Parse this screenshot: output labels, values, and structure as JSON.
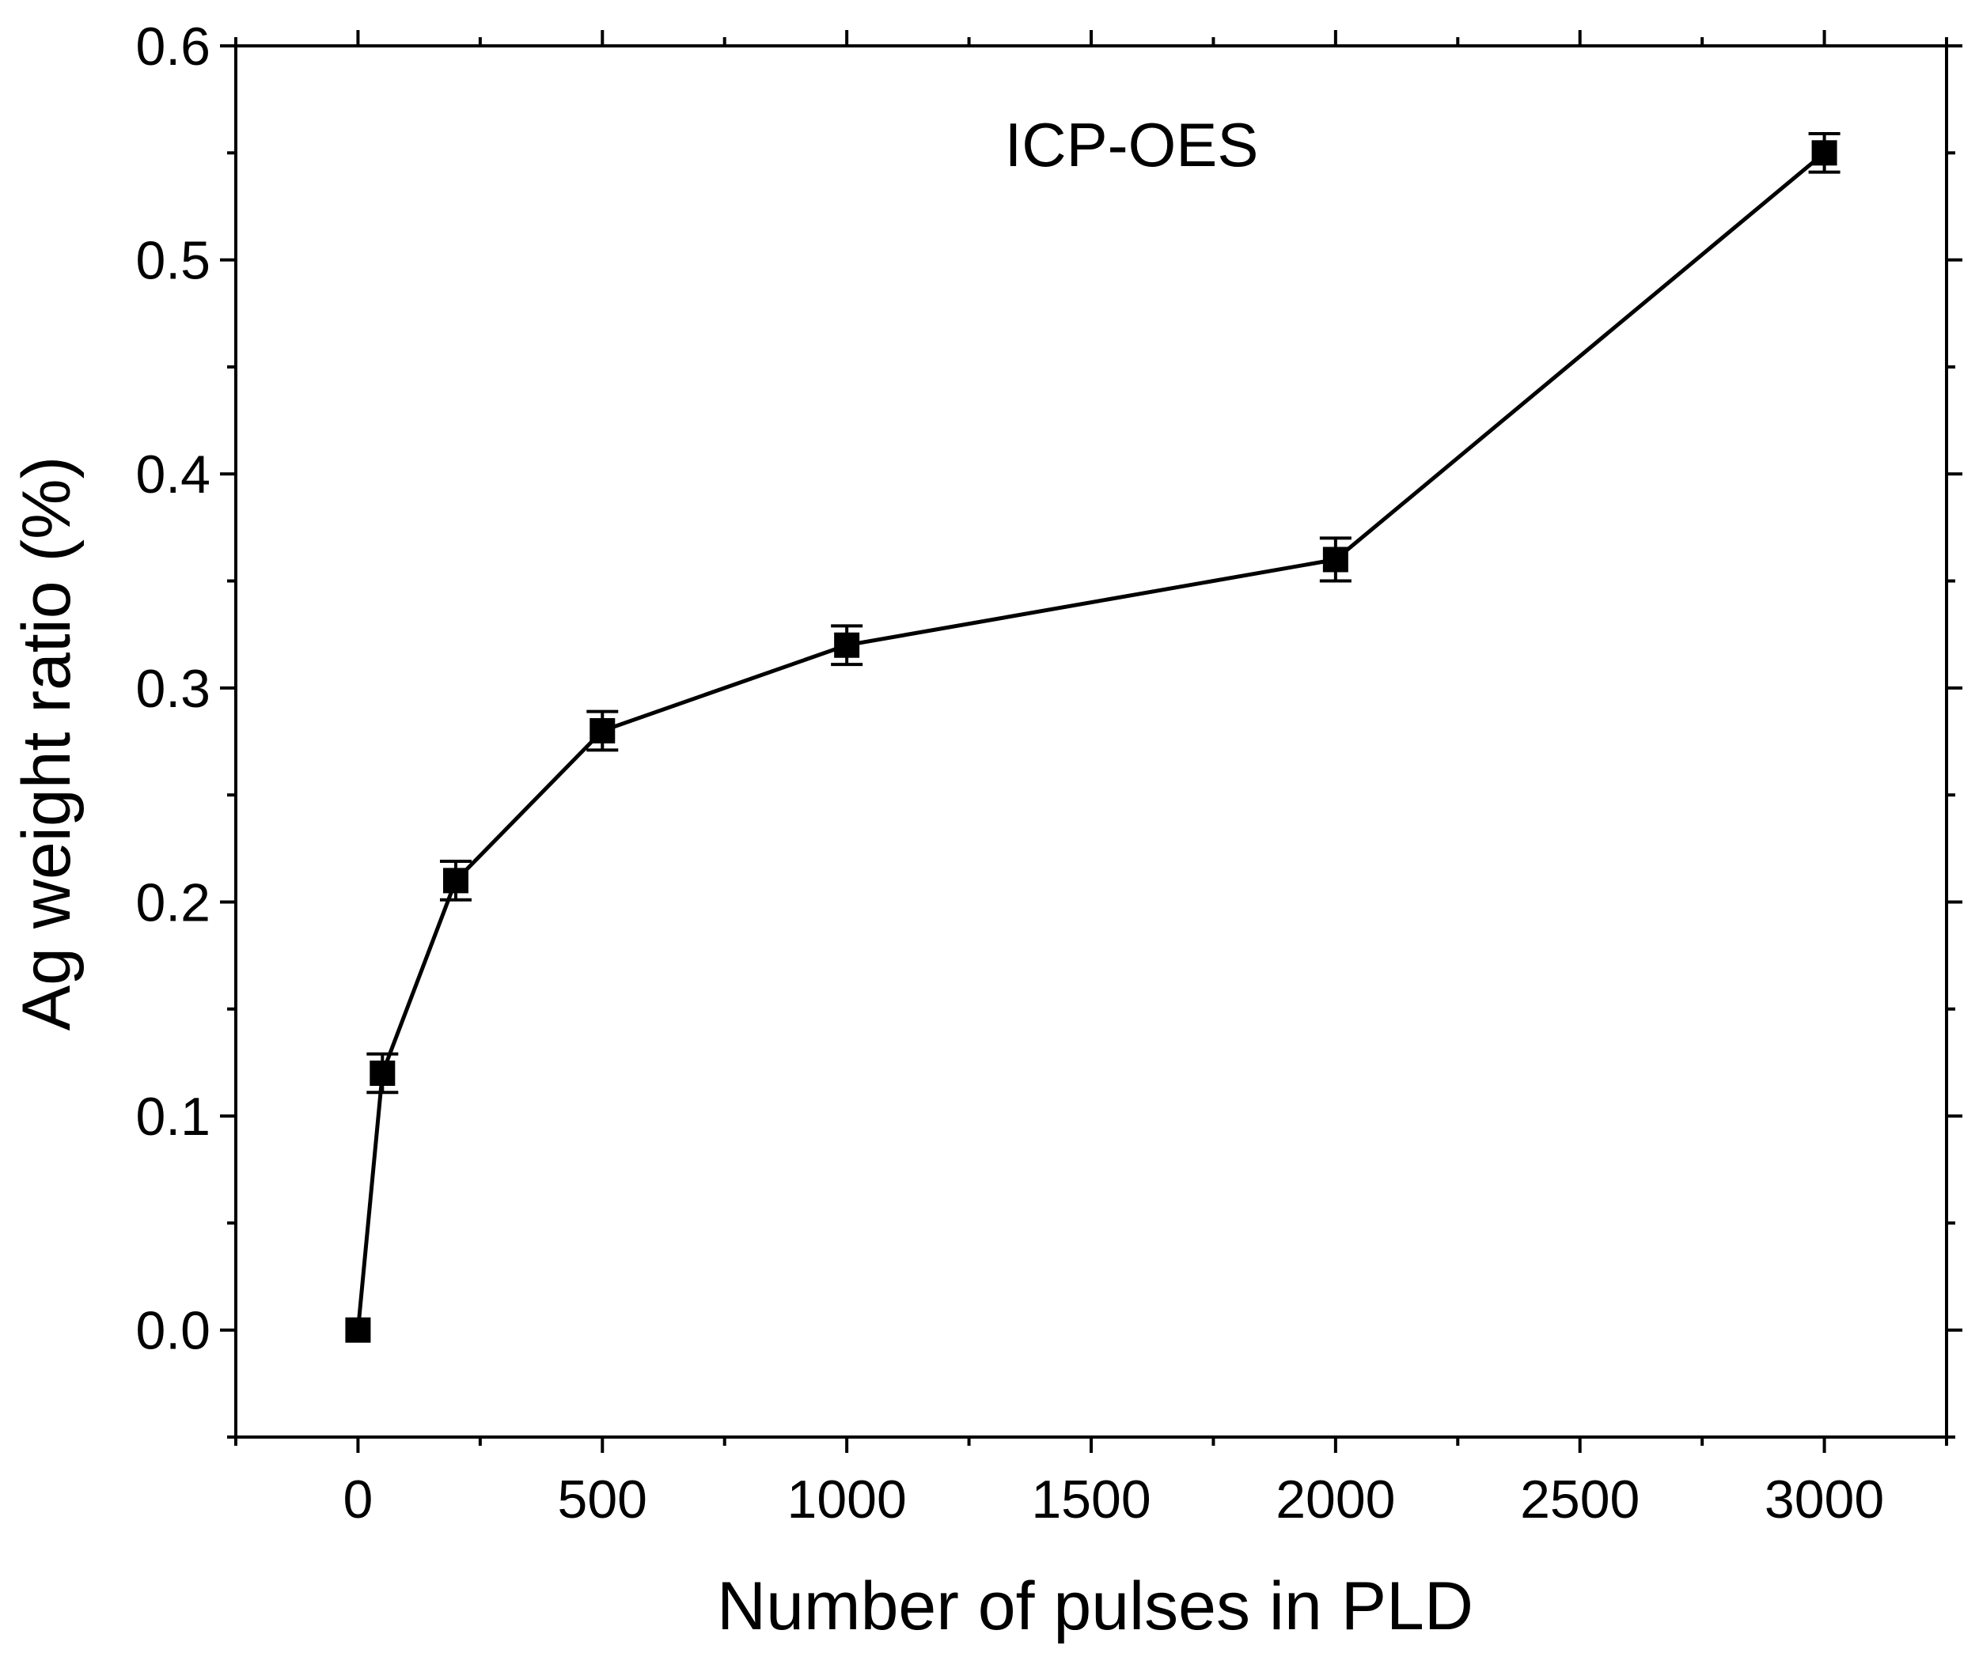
{
  "chart_data": {
    "type": "line",
    "title": "",
    "annotation": "ICP-OES",
    "xlabel": "Number of pulses in PLD",
    "ylabel": "Ag weight ratio (%)",
    "xlim": [
      -250,
      3250
    ],
    "ylim": [
      -0.05,
      0.6
    ],
    "x_ticks": [
      0,
      500,
      1000,
      1500,
      2000,
      2500,
      3000
    ],
    "x_tick_labels": [
      "0",
      "500",
      "1000",
      "1500",
      "2000",
      "2500",
      "3000"
    ],
    "x_minor_ticks": [
      -250,
      250,
      750,
      1250,
      1750,
      2250,
      2750,
      3250
    ],
    "y_ticks": [
      0.0,
      0.1,
      0.2,
      0.3,
      0.4,
      0.5,
      0.6
    ],
    "y_tick_labels": [
      "0.0",
      "0.1",
      "0.2",
      "0.3",
      "0.4",
      "0.5",
      "0.6"
    ],
    "y_minor_ticks": [
      -0.05,
      0.05,
      0.15,
      0.25,
      0.35,
      0.45,
      0.55
    ],
    "grid": false,
    "series": [
      {
        "name": "ICP-OES",
        "marker": "square",
        "color": "#000000",
        "x": [
          0,
          50,
          200,
          500,
          1000,
          2000,
          3000
        ],
        "y": [
          0.0,
          0.12,
          0.21,
          0.28,
          0.32,
          0.36,
          0.55
        ],
        "y_err": [
          0.0,
          0.009,
          0.009,
          0.009,
          0.009,
          0.01,
          0.009
        ]
      }
    ]
  }
}
